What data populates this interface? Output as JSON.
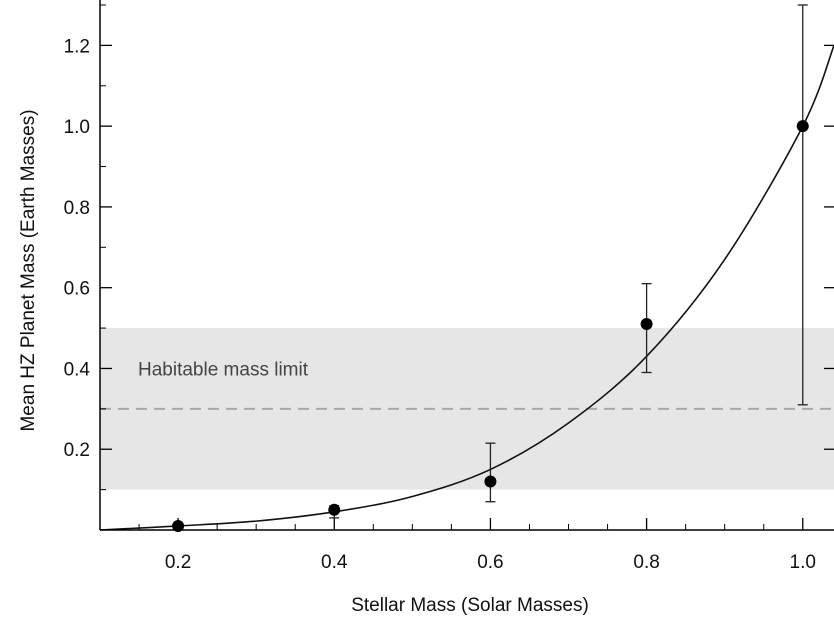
{
  "chart_data": {
    "type": "scatter",
    "xlabel": "Stellar Mass (Solar Masses)",
    "ylabel": "Mean HZ Planet Mass (Earth Masses)",
    "xlim": [
      0.1,
      1.04
    ],
    "ylim": [
      0.0,
      1.3
    ],
    "x_ticks": [
      0.2,
      0.4,
      0.6,
      0.8,
      1.0
    ],
    "x_tick_labels": [
      "0.2",
      "0.4",
      "0.6",
      "0.8",
      "1.0"
    ],
    "y_ticks": [
      0.2,
      0.4,
      0.6,
      0.8,
      1.0,
      1.2
    ],
    "y_tick_labels": [
      "0.2",
      "0.4",
      "0.6",
      "0.8",
      "1.0",
      "1.2"
    ],
    "points": [
      {
        "x": 0.2,
        "y": 0.01,
        "err_low": null,
        "err_high": null
      },
      {
        "x": 0.4,
        "y": 0.05,
        "err_low": 0.03,
        "err_high": 0.06
      },
      {
        "x": 0.6,
        "y": 0.12,
        "err_low": 0.07,
        "err_high": 0.215
      },
      {
        "x": 0.8,
        "y": 0.51,
        "err_low": 0.39,
        "err_high": 0.61
      },
      {
        "x": 1.0,
        "y": 1.0,
        "err_low": 0.31,
        "err_high": 1.3
      }
    ],
    "fit_curve": [
      {
        "x": 0.1,
        "y": 0.0
      },
      {
        "x": 0.2,
        "y": 0.01
      },
      {
        "x": 0.3,
        "y": 0.022
      },
      {
        "x": 0.4,
        "y": 0.045
      },
      {
        "x": 0.5,
        "y": 0.083
      },
      {
        "x": 0.6,
        "y": 0.15
      },
      {
        "x": 0.7,
        "y": 0.265
      },
      {
        "x": 0.8,
        "y": 0.43
      },
      {
        "x": 0.9,
        "y": 0.67
      },
      {
        "x": 1.0,
        "y": 1.0
      },
      {
        "x": 1.04,
        "y": 1.2
      }
    ],
    "band": {
      "y_min": 0.1,
      "y_max": 0.5,
      "color": "#e6e6e6"
    },
    "limit_line": {
      "y": 0.3,
      "style": "dashed",
      "color": "#a8a8a8"
    },
    "annotation": "Habitable mass limit",
    "grid": false
  }
}
